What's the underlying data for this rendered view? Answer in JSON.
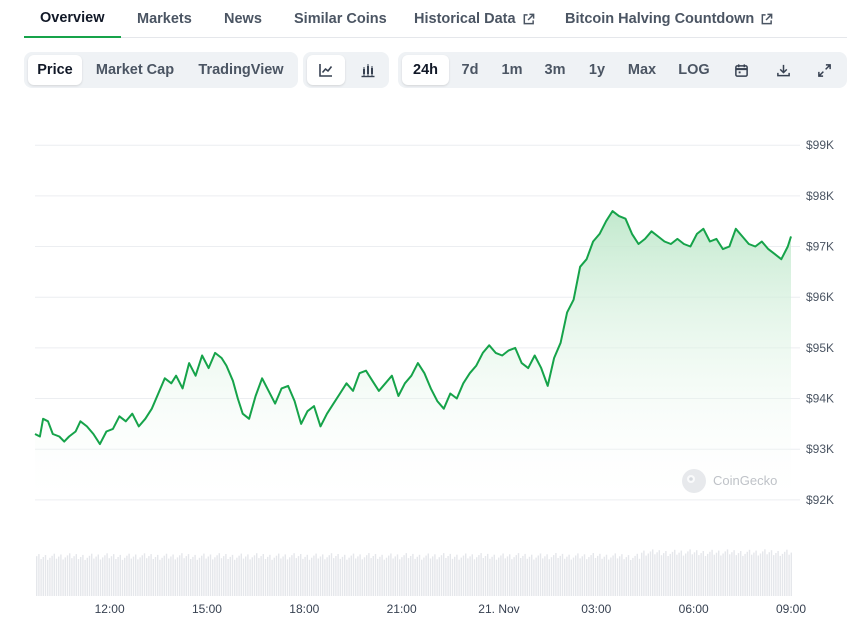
{
  "tabs": [
    {
      "label": "Overview",
      "active": true,
      "external": false
    },
    {
      "label": "Markets",
      "active": false,
      "external": false
    },
    {
      "label": "News",
      "active": false,
      "external": false
    },
    {
      "label": "Similar Coins",
      "active": false,
      "external": false
    },
    {
      "label": "Historical Data",
      "active": false,
      "external": true
    },
    {
      "label": "Bitcoin Halving Countdown",
      "active": false,
      "external": true
    }
  ],
  "toolbar": {
    "metric_options": [
      {
        "label": "Price",
        "active": true
      },
      {
        "label": "Market Cap",
        "active": false
      },
      {
        "label": "TradingView",
        "active": false
      }
    ],
    "chart_style_icons": [
      {
        "icon": "line-chart-icon",
        "active": true
      },
      {
        "icon": "candlestick-chart-icon",
        "active": false
      }
    ],
    "ranges": [
      {
        "label": "24h",
        "active": true
      },
      {
        "label": "7d",
        "active": false
      },
      {
        "label": "1m",
        "active": false
      },
      {
        "label": "3m",
        "active": false
      },
      {
        "label": "1y",
        "active": false
      },
      {
        "label": "Max",
        "active": false
      },
      {
        "label": "LOG",
        "active": false
      }
    ],
    "action_icons": [
      "calendar-icon",
      "download-icon",
      "fullscreen-icon"
    ]
  },
  "watermark": "CoinGecko",
  "colors": {
    "line": "#16a34a",
    "area_top": "#bfe8cb",
    "volume": "#e5e7eb",
    "grid": "#eceef1",
    "active_tab_underline": "#16a34a"
  },
  "chart_data": {
    "type": "area",
    "ylim": [
      91800,
      99300
    ],
    "y_ticks": [
      {
        "value": 99000,
        "label": "$99K"
      },
      {
        "value": 98000,
        "label": "$98K"
      },
      {
        "value": 97000,
        "label": "$97K"
      },
      {
        "value": 96000,
        "label": "$96K"
      },
      {
        "value": 95000,
        "label": "$95K"
      },
      {
        "value": 94000,
        "label": "$94K"
      },
      {
        "value": 93000,
        "label": "$93K"
      },
      {
        "value": 92000,
        "label": "$92K"
      }
    ],
    "x_ticks": [
      {
        "t": 2.0,
        "label": "12:00"
      },
      {
        "t": 5.0,
        "label": "15:00"
      },
      {
        "t": 8.0,
        "label": "18:00"
      },
      {
        "t": 11.0,
        "label": "21:00"
      },
      {
        "t": 14.0,
        "label": "21. Nov"
      },
      {
        "t": 17.0,
        "label": "03:00"
      },
      {
        "t": 20.0,
        "label": "06:00"
      },
      {
        "t": 23.0,
        "label": "09:00"
      }
    ],
    "x_range": [
      -0.3,
      23.0
    ],
    "series": [
      {
        "points": [
          [
            -0.3,
            93300
          ],
          [
            -0.15,
            93250
          ],
          [
            -0.05,
            93600
          ],
          [
            0.1,
            93550
          ],
          [
            0.25,
            93300
          ],
          [
            0.45,
            93250
          ],
          [
            0.6,
            93150
          ],
          [
            0.75,
            93250
          ],
          [
            0.95,
            93350
          ],
          [
            1.1,
            93550
          ],
          [
            1.3,
            93450
          ],
          [
            1.5,
            93300
          ],
          [
            1.7,
            93100
          ],
          [
            1.9,
            93350
          ],
          [
            2.1,
            93400
          ],
          [
            2.3,
            93650
          ],
          [
            2.5,
            93550
          ],
          [
            2.7,
            93700
          ],
          [
            2.9,
            93450
          ],
          [
            3.1,
            93600
          ],
          [
            3.3,
            93800
          ],
          [
            3.5,
            94100
          ],
          [
            3.7,
            94400
          ],
          [
            3.9,
            94300
          ],
          [
            4.05,
            94450
          ],
          [
            4.25,
            94200
          ],
          [
            4.45,
            94700
          ],
          [
            4.65,
            94450
          ],
          [
            4.85,
            94850
          ],
          [
            5.05,
            94600
          ],
          [
            5.25,
            94900
          ],
          [
            5.45,
            94800
          ],
          [
            5.6,
            94650
          ],
          [
            5.8,
            94350
          ],
          [
            5.95,
            94000
          ],
          [
            6.1,
            93700
          ],
          [
            6.3,
            93600
          ],
          [
            6.5,
            94050
          ],
          [
            6.7,
            94400
          ],
          [
            6.9,
            94150
          ],
          [
            7.1,
            93900
          ],
          [
            7.3,
            94200
          ],
          [
            7.5,
            94250
          ],
          [
            7.7,
            93950
          ],
          [
            7.9,
            93500
          ],
          [
            8.1,
            93750
          ],
          [
            8.3,
            93850
          ],
          [
            8.5,
            93450
          ],
          [
            8.7,
            93700
          ],
          [
            8.9,
            93900
          ],
          [
            9.1,
            94100
          ],
          [
            9.3,
            94300
          ],
          [
            9.5,
            94150
          ],
          [
            9.7,
            94500
          ],
          [
            9.9,
            94550
          ],
          [
            10.1,
            94350
          ],
          [
            10.3,
            94150
          ],
          [
            10.5,
            94300
          ],
          [
            10.7,
            94450
          ],
          [
            10.9,
            94050
          ],
          [
            11.1,
            94300
          ],
          [
            11.3,
            94450
          ],
          [
            11.5,
            94700
          ],
          [
            11.7,
            94500
          ],
          [
            11.9,
            94200
          ],
          [
            12.1,
            93950
          ],
          [
            12.3,
            93800
          ],
          [
            12.5,
            94100
          ],
          [
            12.7,
            94000
          ],
          [
            12.9,
            94300
          ],
          [
            13.1,
            94500
          ],
          [
            13.3,
            94650
          ],
          [
            13.5,
            94900
          ],
          [
            13.7,
            95050
          ],
          [
            13.9,
            94900
          ],
          [
            14.1,
            94850
          ],
          [
            14.3,
            94950
          ],
          [
            14.5,
            95000
          ],
          [
            14.7,
            94700
          ],
          [
            14.9,
            94600
          ],
          [
            15.1,
            94850
          ],
          [
            15.3,
            94600
          ],
          [
            15.5,
            94250
          ],
          [
            15.7,
            94800
          ],
          [
            15.9,
            95100
          ],
          [
            16.1,
            95700
          ],
          [
            16.3,
            95950
          ],
          [
            16.5,
            96600
          ],
          [
            16.7,
            96750
          ],
          [
            16.9,
            97100
          ],
          [
            17.1,
            97250
          ],
          [
            17.3,
            97500
          ],
          [
            17.5,
            97700
          ],
          [
            17.7,
            97600
          ],
          [
            17.9,
            97550
          ],
          [
            18.1,
            97250
          ],
          [
            18.3,
            97050
          ],
          [
            18.5,
            97150
          ],
          [
            18.7,
            97300
          ],
          [
            18.9,
            97200
          ],
          [
            19.1,
            97100
          ],
          [
            19.3,
            97050
          ],
          [
            19.5,
            97150
          ],
          [
            19.7,
            97050
          ],
          [
            19.9,
            97000
          ],
          [
            20.1,
            97250
          ],
          [
            20.3,
            97350
          ],
          [
            20.5,
            97100
          ],
          [
            20.7,
            97150
          ],
          [
            20.9,
            96950
          ],
          [
            21.1,
            97000
          ],
          [
            21.3,
            97350
          ],
          [
            21.5,
            97200
          ],
          [
            21.7,
            97050
          ],
          [
            21.9,
            97000
          ],
          [
            22.1,
            97100
          ],
          [
            22.3,
            96950
          ],
          [
            22.5,
            96850
          ],
          [
            22.7,
            96750
          ],
          [
            22.9,
            97000
          ],
          [
            23.0,
            97200
          ]
        ]
      }
    ]
  }
}
